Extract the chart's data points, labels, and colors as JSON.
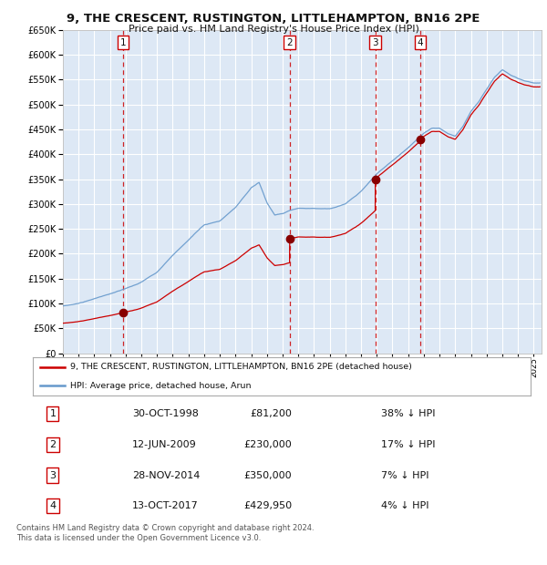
{
  "title": "9, THE CRESCENT, RUSTINGTON, LITTLEHAMPTON, BN16 2PE",
  "subtitle": "Price paid vs. HM Land Registry's House Price Index (HPI)",
  "bg_color": "#dde8f5",
  "grid_color": "#ffffff",
  "sale_dates_num": [
    1998.831,
    2009.449,
    2014.908,
    2017.786
  ],
  "sale_prices": [
    81200,
    230000,
    350000,
    429950
  ],
  "sale_labels": [
    "1",
    "2",
    "3",
    "4"
  ],
  "legend_house_label": "9, THE CRESCENT, RUSTINGTON, LITTLEHAMPTON, BN16 2PE (detached house)",
  "legend_hpi_label": "HPI: Average price, detached house, Arun",
  "table_data": [
    [
      "1",
      "30-OCT-1998",
      "£81,200",
      "38% ↓ HPI"
    ],
    [
      "2",
      "12-JUN-2009",
      "£230,000",
      "17% ↓ HPI"
    ],
    [
      "3",
      "28-NOV-2014",
      "£350,000",
      "7% ↓ HPI"
    ],
    [
      "4",
      "13-OCT-2017",
      "£429,950",
      "4% ↓ HPI"
    ]
  ],
  "footer": "Contains HM Land Registry data © Crown copyright and database right 2024.\nThis data is licensed under the Open Government Licence v3.0.",
  "ylim": [
    0,
    650000
  ],
  "yticks": [
    0,
    50000,
    100000,
    150000,
    200000,
    250000,
    300000,
    350000,
    400000,
    450000,
    500000,
    550000,
    600000,
    650000
  ],
  "xlim_start": 1995.0,
  "xlim_end": 2025.5,
  "house_line_color": "#cc0000",
  "hpi_line_color": "#6699cc",
  "marker_color": "#880000",
  "sale_vline_color": "#cc0000",
  "hpi_years_key": [
    1995.0,
    1996.0,
    1997.0,
    1998.0,
    1999.0,
    2000.0,
    2001.0,
    2002.0,
    2003.0,
    2004.0,
    2005.0,
    2006.0,
    2007.0,
    2007.5,
    2008.0,
    2008.5,
    2009.0,
    2009.5,
    2010.0,
    2011.0,
    2012.0,
    2013.0,
    2014.0,
    2015.0,
    2016.0,
    2017.0,
    2017.5,
    2018.0,
    2018.5,
    2019.0,
    2019.5,
    2020.0,
    2020.5,
    2021.0,
    2021.5,
    2022.0,
    2022.5,
    2023.0,
    2023.5,
    2024.0,
    2024.5,
    2025.0
  ],
  "hpi_vals_key": [
    95000,
    100000,
    110000,
    120000,
    132000,
    145000,
    165000,
    200000,
    230000,
    260000,
    268000,
    295000,
    335000,
    345000,
    305000,
    280000,
    283000,
    290000,
    295000,
    295000,
    295000,
    305000,
    330000,
    365000,
    390000,
    415000,
    430000,
    445000,
    455000,
    455000,
    445000,
    440000,
    460000,
    490000,
    510000,
    535000,
    560000,
    575000,
    565000,
    558000,
    552000,
    548000
  ]
}
